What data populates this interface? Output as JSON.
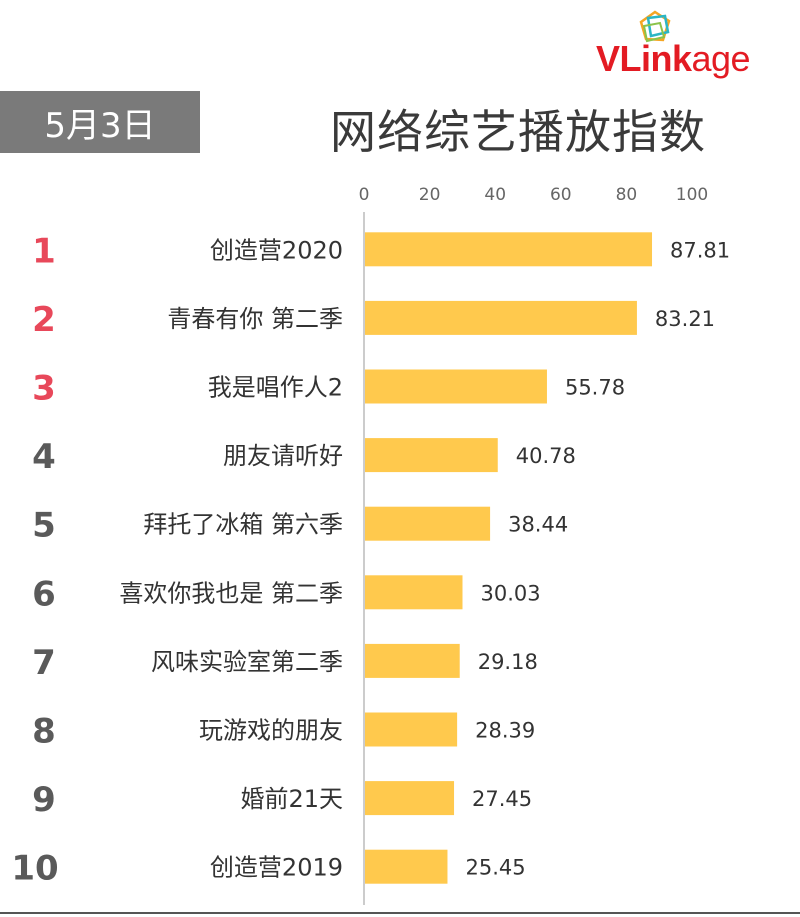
{
  "header": {
    "date_label": "5月3日",
    "logo_text_prefix": "VLink",
    "logo_text_suffix": "age",
    "logo_icon": "vlinkage-cube-icon"
  },
  "colors": {
    "bar": "#ffc94d",
    "rank_top": "#e8485a",
    "rank_other": "#5a5a5a",
    "axis": "#bbbbbb",
    "label": "#333333"
  },
  "chart_data": {
    "type": "bar",
    "orientation": "horizontal",
    "title": "网络综艺播放指数",
    "categories": [
      "创造营2020",
      "青春有你 第二季",
      "我是唱作人2",
      "朋友请听好",
      "拜托了冰箱 第六季",
      "喜欢你我也是 第二季",
      "风味实验室第二季",
      "玩游戏的朋友",
      "婚前21天",
      "创造营2019"
    ],
    "ranks": [
      "1",
      "2",
      "3",
      "4",
      "5",
      "6",
      "7",
      "8",
      "9",
      "10"
    ],
    "values": [
      87.81,
      83.21,
      55.78,
      40.78,
      38.44,
      30.03,
      29.18,
      28.39,
      27.45,
      25.45
    ],
    "value_labels": [
      "87.81",
      "83.21",
      "55.78",
      "40.78",
      "38.44",
      "30.03",
      "29.18",
      "28.39",
      "27.45",
      "25.45"
    ],
    "xlim": [
      0,
      100
    ],
    "xticks": [
      "0",
      "20",
      "40",
      "60",
      "80",
      "100"
    ],
    "xlabel": "",
    "ylabel": "",
    "grid": false,
    "axis_position": "top"
  }
}
